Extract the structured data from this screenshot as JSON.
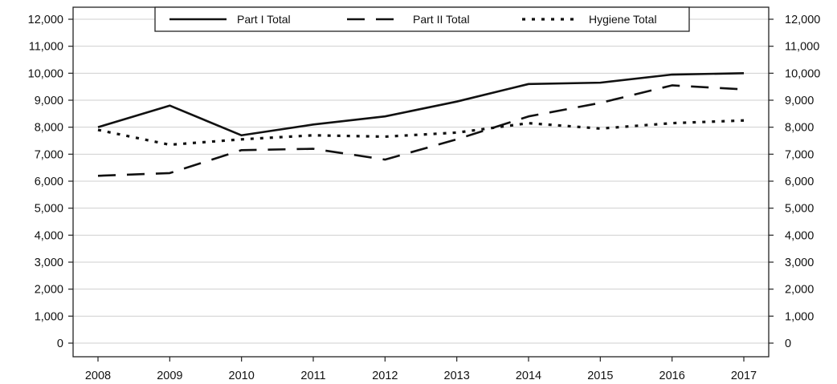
{
  "chart_data": {
    "type": "line",
    "title": "",
    "xlabel": "",
    "ylabel": "",
    "categories": [
      "2008",
      "2009",
      "2010",
      "2011",
      "2012",
      "2013",
      "2014",
      "2015",
      "2016",
      "2017"
    ],
    "ylim": [
      0,
      12000
    ],
    "yticks": [
      0,
      1000,
      2000,
      3000,
      4000,
      5000,
      6000,
      7000,
      8000,
      9000,
      10000,
      11000,
      12000
    ],
    "ytick_labels": [
      "0",
      "1,000",
      "2,000",
      "3,000",
      "4,000",
      "5,000",
      "6,000",
      "7,000",
      "8,000",
      "9,000",
      "10,000",
      "11,000",
      "12,000"
    ],
    "secondary_y_axis": true,
    "grid": "horizontal",
    "legend_position": "top",
    "series": [
      {
        "name": "Part I Total",
        "style": "solid",
        "color": "#111111",
        "values": [
          8000,
          8800,
          7700,
          8100,
          8400,
          8950,
          9600,
          9650,
          9950,
          10000
        ]
      },
      {
        "name": "Part II Total",
        "style": "dashed",
        "color": "#111111",
        "values": [
          6200,
          6300,
          7150,
          7200,
          6800,
          7550,
          8400,
          8900,
          9550,
          9400
        ]
      },
      {
        "name": "Hygiene Total",
        "style": "dotted",
        "color": "#111111",
        "values": [
          7900,
          7350,
          7550,
          7700,
          7650,
          7800,
          8150,
          7950,
          8150,
          8250
        ]
      }
    ]
  }
}
